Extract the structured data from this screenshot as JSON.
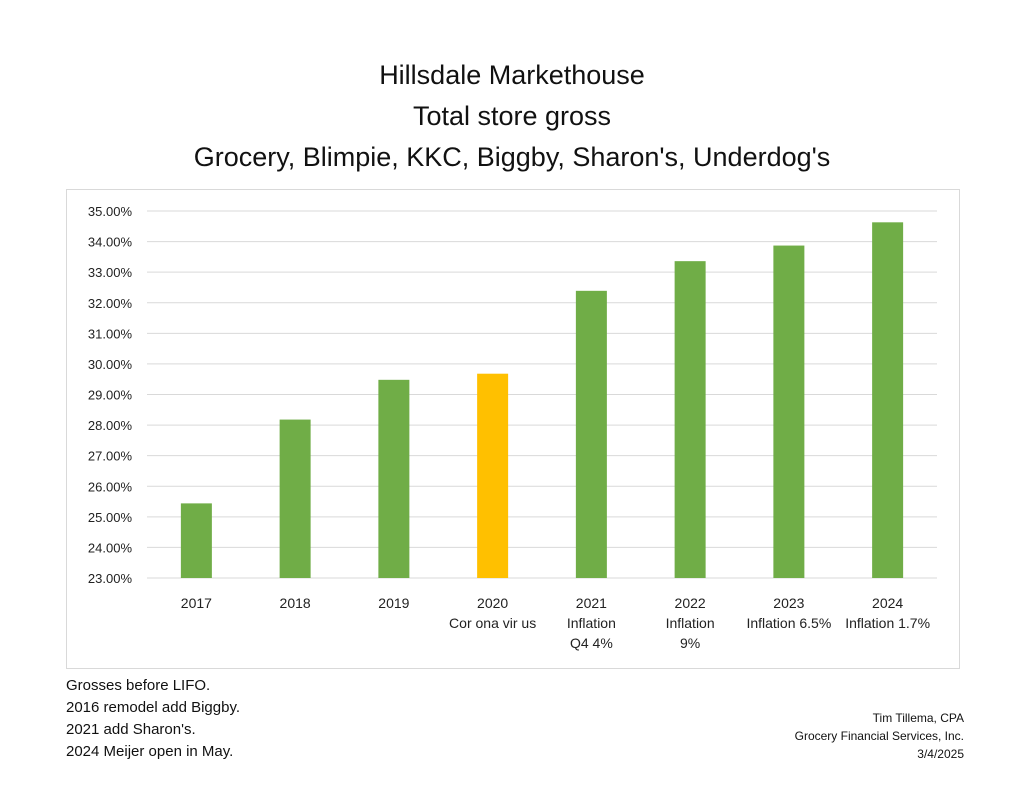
{
  "chart_data": {
    "type": "bar",
    "title": [
      "Hillsdale Markethouse",
      "Total store gross",
      "Grocery, Blimpie, KKC, Biggby, Sharon's, Underdog's"
    ],
    "categories": [
      [
        "2017"
      ],
      [
        "2018"
      ],
      [
        "2019"
      ],
      [
        "2020",
        "Cor ona vir us"
      ],
      [
        "2021",
        "Inflation",
        "Q4 4%"
      ],
      [
        "2022",
        "Inflation",
        "9%"
      ],
      [
        "2023",
        "Inflation 6.5%"
      ],
      [
        "2024",
        "Inflation 1.7%"
      ]
    ],
    "values": [
      25.44,
      28.18,
      29.48,
      29.68,
      32.39,
      33.36,
      33.87,
      34.63
    ],
    "colors": [
      "#70ad47",
      "#70ad47",
      "#70ad47",
      "#ffc000",
      "#70ad47",
      "#70ad47",
      "#70ad47",
      "#70ad47"
    ],
    "yticks": [
      "23.00%",
      "24.00%",
      "25.00%",
      "26.00%",
      "27.00%",
      "28.00%",
      "29.00%",
      "30.00%",
      "31.00%",
      "32.00%",
      "33.00%",
      "34.00%",
      "35.00%"
    ],
    "ylim": [
      23,
      35
    ],
    "grid": true,
    "xlabel": "",
    "ylabel": ""
  },
  "notes": [
    "Grosses before LIFO.",
    "2016 remodel add Biggby.",
    "2021 add Sharon's.",
    "2024 Meijer open in May."
  ],
  "signature": [
    "Tim Tillema, CPA",
    "Grocery Financial Services, Inc.",
    "3/4/2025"
  ]
}
